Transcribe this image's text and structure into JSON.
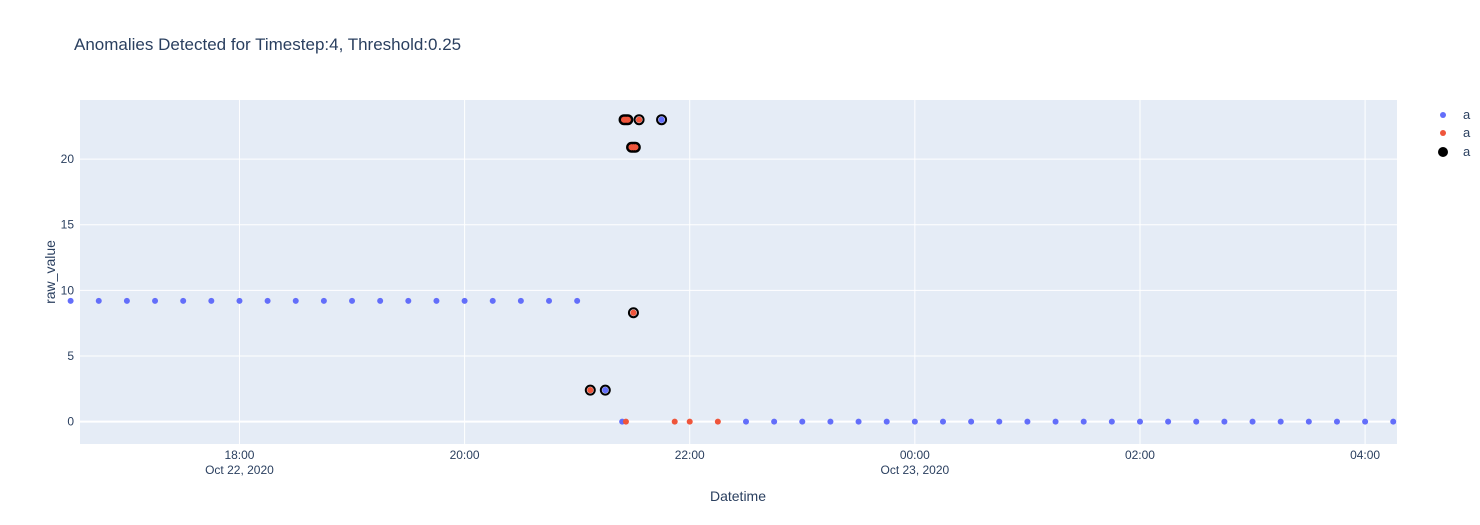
{
  "chart_data": {
    "type": "scatter",
    "title": "Anomalies Detected for Timestep:4, Threshold:0.25",
    "xlabel": "Datetime",
    "ylabel": "raw_value",
    "xlim": [
      "2020-10-22 16:35",
      "2020-10-23 04:17"
    ],
    "ylim": [
      -1.7,
      24.5
    ],
    "x_ticks": [
      {
        "value": "2020-10-22 18:00",
        "label": "18:00",
        "sublabel": "Oct 22, 2020"
      },
      {
        "value": "2020-10-22 20:00",
        "label": "20:00",
        "sublabel": ""
      },
      {
        "value": "2020-10-22 22:00",
        "label": "22:00",
        "sublabel": ""
      },
      {
        "value": "2020-10-23 00:00",
        "label": "00:00",
        "sublabel": "Oct 23, 2020"
      },
      {
        "value": "2020-10-23 02:00",
        "label": "02:00",
        "sublabel": ""
      },
      {
        "value": "2020-10-23 04:00",
        "label": "04:00",
        "sublabel": ""
      }
    ],
    "y_ticks": [
      0,
      5,
      10,
      15,
      20
    ],
    "grid": true,
    "legend_position": "right",
    "series": [
      {
        "name": "a",
        "color": "#636efa",
        "points": [
          [
            "2020-10-22 16:30",
            9.2
          ],
          [
            "2020-10-22 16:45",
            9.2
          ],
          [
            "2020-10-22 17:00",
            9.2
          ],
          [
            "2020-10-22 17:15",
            9.2
          ],
          [
            "2020-10-22 17:30",
            9.2
          ],
          [
            "2020-10-22 17:45",
            9.2
          ],
          [
            "2020-10-22 18:00",
            9.2
          ],
          [
            "2020-10-22 18:15",
            9.2
          ],
          [
            "2020-10-22 18:30",
            9.2
          ],
          [
            "2020-10-22 18:45",
            9.2
          ],
          [
            "2020-10-22 19:00",
            9.2
          ],
          [
            "2020-10-22 19:15",
            9.2
          ],
          [
            "2020-10-22 19:30",
            9.2
          ],
          [
            "2020-10-22 19:45",
            9.2
          ],
          [
            "2020-10-22 20:00",
            9.2
          ],
          [
            "2020-10-22 20:15",
            9.2
          ],
          [
            "2020-10-22 20:30",
            9.2
          ],
          [
            "2020-10-22 20:45",
            9.2
          ],
          [
            "2020-10-22 21:00",
            9.2
          ],
          [
            "2020-10-22 21:15",
            2.4
          ],
          [
            "2020-10-22 21:24",
            0
          ],
          [
            "2020-10-22 21:45",
            23.0
          ],
          [
            "2020-10-22 22:30",
            0
          ],
          [
            "2020-10-22 22:45",
            0
          ],
          [
            "2020-10-22 23:00",
            0
          ],
          [
            "2020-10-22 23:15",
            0
          ],
          [
            "2020-10-22 23:30",
            0
          ],
          [
            "2020-10-22 23:45",
            0
          ],
          [
            "2020-10-23 00:00",
            0
          ],
          [
            "2020-10-23 00:15",
            0
          ],
          [
            "2020-10-23 00:30",
            0
          ],
          [
            "2020-10-23 00:45",
            0
          ],
          [
            "2020-10-23 01:00",
            0
          ],
          [
            "2020-10-23 01:15",
            0
          ],
          [
            "2020-10-23 01:30",
            0
          ],
          [
            "2020-10-23 01:45",
            0
          ],
          [
            "2020-10-23 02:00",
            0
          ],
          [
            "2020-10-23 02:15",
            0
          ],
          [
            "2020-10-23 02:30",
            0
          ],
          [
            "2020-10-23 02:45",
            0
          ],
          [
            "2020-10-23 03:00",
            0
          ],
          [
            "2020-10-23 03:15",
            0
          ],
          [
            "2020-10-23 03:30",
            0
          ],
          [
            "2020-10-23 03:45",
            0
          ],
          [
            "2020-10-23 04:00",
            0
          ],
          [
            "2020-10-23 04:15",
            0
          ]
        ]
      },
      {
        "name": "a",
        "color": "#ef553b",
        "points": [
          [
            "2020-10-22 21:07",
            2.4
          ],
          [
            "2020-10-22 21:26",
            0
          ],
          [
            "2020-10-22 21:25",
            23.0
          ],
          [
            "2020-10-22 21:26",
            23.0
          ],
          [
            "2020-10-22 21:27",
            23.0
          ],
          [
            "2020-10-22 21:29",
            20.9
          ],
          [
            "2020-10-22 21:30",
            20.9
          ],
          [
            "2020-10-22 21:31",
            20.9
          ],
          [
            "2020-10-22 21:30",
            8.3
          ],
          [
            "2020-10-22 21:33",
            23.0
          ],
          [
            "2020-10-22 21:52",
            0
          ],
          [
            "2020-10-22 22:00",
            0
          ],
          [
            "2020-10-22 22:15",
            0
          ]
        ]
      },
      {
        "name": "a",
        "color": "#000000",
        "points": [
          [
            "2020-10-22 21:07",
            2.4
          ],
          [
            "2020-10-22 21:15",
            2.4
          ],
          [
            "2020-10-22 21:25",
            23.0
          ],
          [
            "2020-10-22 21:26",
            23.0
          ],
          [
            "2020-10-22 21:27",
            23.0
          ],
          [
            "2020-10-22 21:29",
            20.9
          ],
          [
            "2020-10-22 21:30",
            20.9
          ],
          [
            "2020-10-22 21:31",
            20.9
          ],
          [
            "2020-10-22 21:30",
            8.3
          ],
          [
            "2020-10-22 21:33",
            23.0
          ],
          [
            "2020-10-22 21:45",
            23.0
          ]
        ]
      }
    ]
  }
}
